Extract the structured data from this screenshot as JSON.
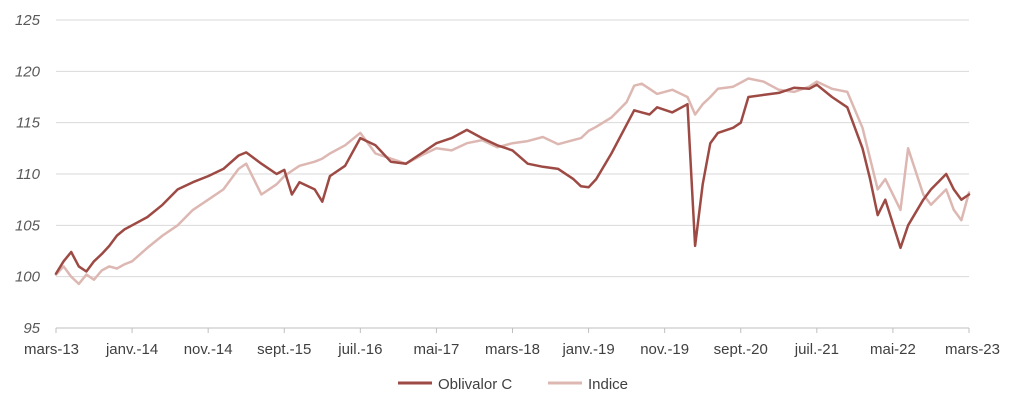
{
  "chart_data": {
    "type": "line",
    "ylim": [
      95,
      125
    ],
    "yticks": [
      95,
      100,
      105,
      110,
      115,
      120,
      125
    ],
    "x_tick_labels": [
      "mars-13",
      "janv.-14",
      "nov.-14",
      "sept.-15",
      "juil.-16",
      "mai-17",
      "mars-18",
      "janv.-19",
      "nov.-19",
      "sept.-20",
      "juil.-21",
      "mai-22",
      "mars-23"
    ],
    "grid": "horizontal",
    "legend_position": "bottom",
    "series": [
      {
        "name": "Oblivalor C",
        "color": "#9E4A44",
        "points": [
          [
            "2013-03",
            100.3
          ],
          [
            "2013-04",
            101.5
          ],
          [
            "2013-05",
            102.4
          ],
          [
            "2013-06",
            101.0
          ],
          [
            "2013-07",
            100.5
          ],
          [
            "2013-08",
            101.5
          ],
          [
            "2013-09",
            102.2
          ],
          [
            "2013-10",
            103.0
          ],
          [
            "2013-11",
            104.0
          ],
          [
            "2013-12",
            104.6
          ],
          [
            "2014-01",
            105.0
          ],
          [
            "2014-03",
            105.8
          ],
          [
            "2014-05",
            107.0
          ],
          [
            "2014-07",
            108.5
          ],
          [
            "2014-09",
            109.2
          ],
          [
            "2014-11",
            109.8
          ],
          [
            "2015-01",
            110.5
          ],
          [
            "2015-03",
            111.8
          ],
          [
            "2015-04",
            112.1
          ],
          [
            "2015-06",
            111.0
          ],
          [
            "2015-08",
            110.0
          ],
          [
            "2015-09",
            110.4
          ],
          [
            "2015-10",
            108.0
          ],
          [
            "2015-11",
            109.2
          ],
          [
            "2016-01",
            108.5
          ],
          [
            "2016-02",
            107.3
          ],
          [
            "2016-03",
            109.8
          ],
          [
            "2016-05",
            110.8
          ],
          [
            "2016-07",
            113.5
          ],
          [
            "2016-09",
            112.8
          ],
          [
            "2016-11",
            111.2
          ],
          [
            "2017-01",
            111.0
          ],
          [
            "2017-03",
            112.0
          ],
          [
            "2017-05",
            113.0
          ],
          [
            "2017-07",
            113.5
          ],
          [
            "2017-09",
            114.3
          ],
          [
            "2017-11",
            113.5
          ],
          [
            "2018-01",
            112.8
          ],
          [
            "2018-03",
            112.3
          ],
          [
            "2018-05",
            111.0
          ],
          [
            "2018-07",
            110.7
          ],
          [
            "2018-09",
            110.5
          ],
          [
            "2018-11",
            109.5
          ],
          [
            "2018-12",
            108.8
          ],
          [
            "2019-01",
            108.7
          ],
          [
            "2019-02",
            109.5
          ],
          [
            "2019-04",
            112.0
          ],
          [
            "2019-06",
            114.8
          ],
          [
            "2019-07",
            116.2
          ],
          [
            "2019-08",
            116.0
          ],
          [
            "2019-09",
            115.8
          ],
          [
            "2019-10",
            116.5
          ],
          [
            "2019-12",
            116.0
          ],
          [
            "2020-02",
            116.8
          ],
          [
            "2020-03",
            103.0
          ],
          [
            "2020-04",
            109.0
          ],
          [
            "2020-05",
            113.0
          ],
          [
            "2020-06",
            114.0
          ],
          [
            "2020-08",
            114.5
          ],
          [
            "2020-09",
            115.0
          ],
          [
            "2020-10",
            117.5
          ],
          [
            "2020-12",
            117.7
          ],
          [
            "2021-02",
            117.9
          ],
          [
            "2021-04",
            118.4
          ],
          [
            "2021-06",
            118.3
          ],
          [
            "2021-07",
            118.7
          ],
          [
            "2021-09",
            117.5
          ],
          [
            "2021-11",
            116.5
          ],
          [
            "2022-01",
            112.5
          ],
          [
            "2022-02",
            109.5
          ],
          [
            "2022-03",
            106.0
          ],
          [
            "2022-04",
            107.5
          ],
          [
            "2022-06",
            102.8
          ],
          [
            "2022-07",
            105.0
          ],
          [
            "2022-09",
            107.5
          ],
          [
            "2022-10",
            108.5
          ],
          [
            "2022-12",
            110.0
          ],
          [
            "2023-01",
            108.5
          ],
          [
            "2023-02",
            107.5
          ],
          [
            "2023-03",
            108.0
          ]
        ]
      },
      {
        "name": "Indice",
        "color": "#DDB8B3",
        "points": [
          [
            "2013-03",
            100.2
          ],
          [
            "2013-04",
            101.0
          ],
          [
            "2013-05",
            100.0
          ],
          [
            "2013-06",
            99.3
          ],
          [
            "2013-07",
            100.2
          ],
          [
            "2013-08",
            99.7
          ],
          [
            "2013-09",
            100.6
          ],
          [
            "2013-10",
            101.0
          ],
          [
            "2013-11",
            100.8
          ],
          [
            "2013-12",
            101.2
          ],
          [
            "2014-01",
            101.5
          ],
          [
            "2014-03",
            102.8
          ],
          [
            "2014-05",
            104.0
          ],
          [
            "2014-07",
            105.0
          ],
          [
            "2014-09",
            106.5
          ],
          [
            "2014-11",
            107.5
          ],
          [
            "2015-01",
            108.5
          ],
          [
            "2015-03",
            110.5
          ],
          [
            "2015-04",
            111.0
          ],
          [
            "2015-06",
            108.0
          ],
          [
            "2015-08",
            109.0
          ],
          [
            "2015-09",
            109.8
          ],
          [
            "2015-10",
            110.3
          ],
          [
            "2015-11",
            110.8
          ],
          [
            "2016-01",
            111.2
          ],
          [
            "2016-02",
            111.5
          ],
          [
            "2016-03",
            112.0
          ],
          [
            "2016-05",
            112.8
          ],
          [
            "2016-07",
            114.0
          ],
          [
            "2016-09",
            112.0
          ],
          [
            "2016-11",
            111.5
          ],
          [
            "2017-01",
            111.0
          ],
          [
            "2017-03",
            111.8
          ],
          [
            "2017-05",
            112.5
          ],
          [
            "2017-07",
            112.3
          ],
          [
            "2017-09",
            113.0
          ],
          [
            "2017-11",
            113.3
          ],
          [
            "2018-01",
            112.6
          ],
          [
            "2018-03",
            113.0
          ],
          [
            "2018-05",
            113.2
          ],
          [
            "2018-07",
            113.6
          ],
          [
            "2018-09",
            112.9
          ],
          [
            "2018-11",
            113.3
          ],
          [
            "2018-12",
            113.5
          ],
          [
            "2019-01",
            114.2
          ],
          [
            "2019-02",
            114.6
          ],
          [
            "2019-04",
            115.5
          ],
          [
            "2019-06",
            117.0
          ],
          [
            "2019-07",
            118.6
          ],
          [
            "2019-08",
            118.8
          ],
          [
            "2019-09",
            118.3
          ],
          [
            "2019-10",
            117.8
          ],
          [
            "2019-12",
            118.2
          ],
          [
            "2020-02",
            117.5
          ],
          [
            "2020-03",
            115.8
          ],
          [
            "2020-04",
            116.8
          ],
          [
            "2020-05",
            117.5
          ],
          [
            "2020-06",
            118.3
          ],
          [
            "2020-08",
            118.5
          ],
          [
            "2020-09",
            118.9
          ],
          [
            "2020-10",
            119.3
          ],
          [
            "2020-12",
            119.0
          ],
          [
            "2021-02",
            118.2
          ],
          [
            "2021-04",
            118.0
          ],
          [
            "2021-06",
            118.5
          ],
          [
            "2021-07",
            119.0
          ],
          [
            "2021-09",
            118.3
          ],
          [
            "2021-11",
            118.0
          ],
          [
            "2022-01",
            114.5
          ],
          [
            "2022-02",
            111.5
          ],
          [
            "2022-03",
            108.5
          ],
          [
            "2022-04",
            109.5
          ],
          [
            "2022-06",
            106.5
          ],
          [
            "2022-07",
            112.5
          ],
          [
            "2022-09",
            108.0
          ],
          [
            "2022-10",
            107.0
          ],
          [
            "2022-12",
            108.5
          ],
          [
            "2023-01",
            106.5
          ],
          [
            "2023-02",
            105.5
          ],
          [
            "2023-03",
            108.2
          ]
        ]
      }
    ]
  }
}
